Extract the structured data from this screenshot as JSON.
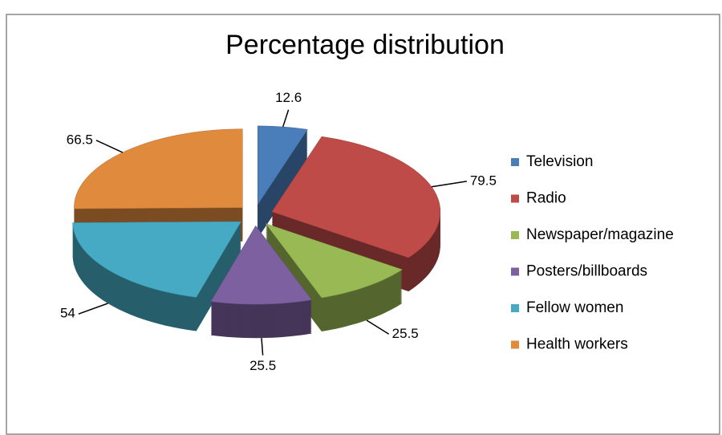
{
  "chart_data": {
    "type": "pie3d",
    "title": "Percentage distribution",
    "categories": [
      "Television",
      "Radio",
      "Newspaper/magazine",
      "Posters/billboards",
      "Fellow women",
      "Health workers"
    ],
    "values": [
      12.6,
      79.5,
      25.5,
      25.5,
      54,
      66.5
    ],
    "colors": [
      "#4a7ebb",
      "#be4b48",
      "#98b954",
      "#7d60a0",
      "#46aac5",
      "#e08a3e"
    ],
    "legend": "right"
  }
}
